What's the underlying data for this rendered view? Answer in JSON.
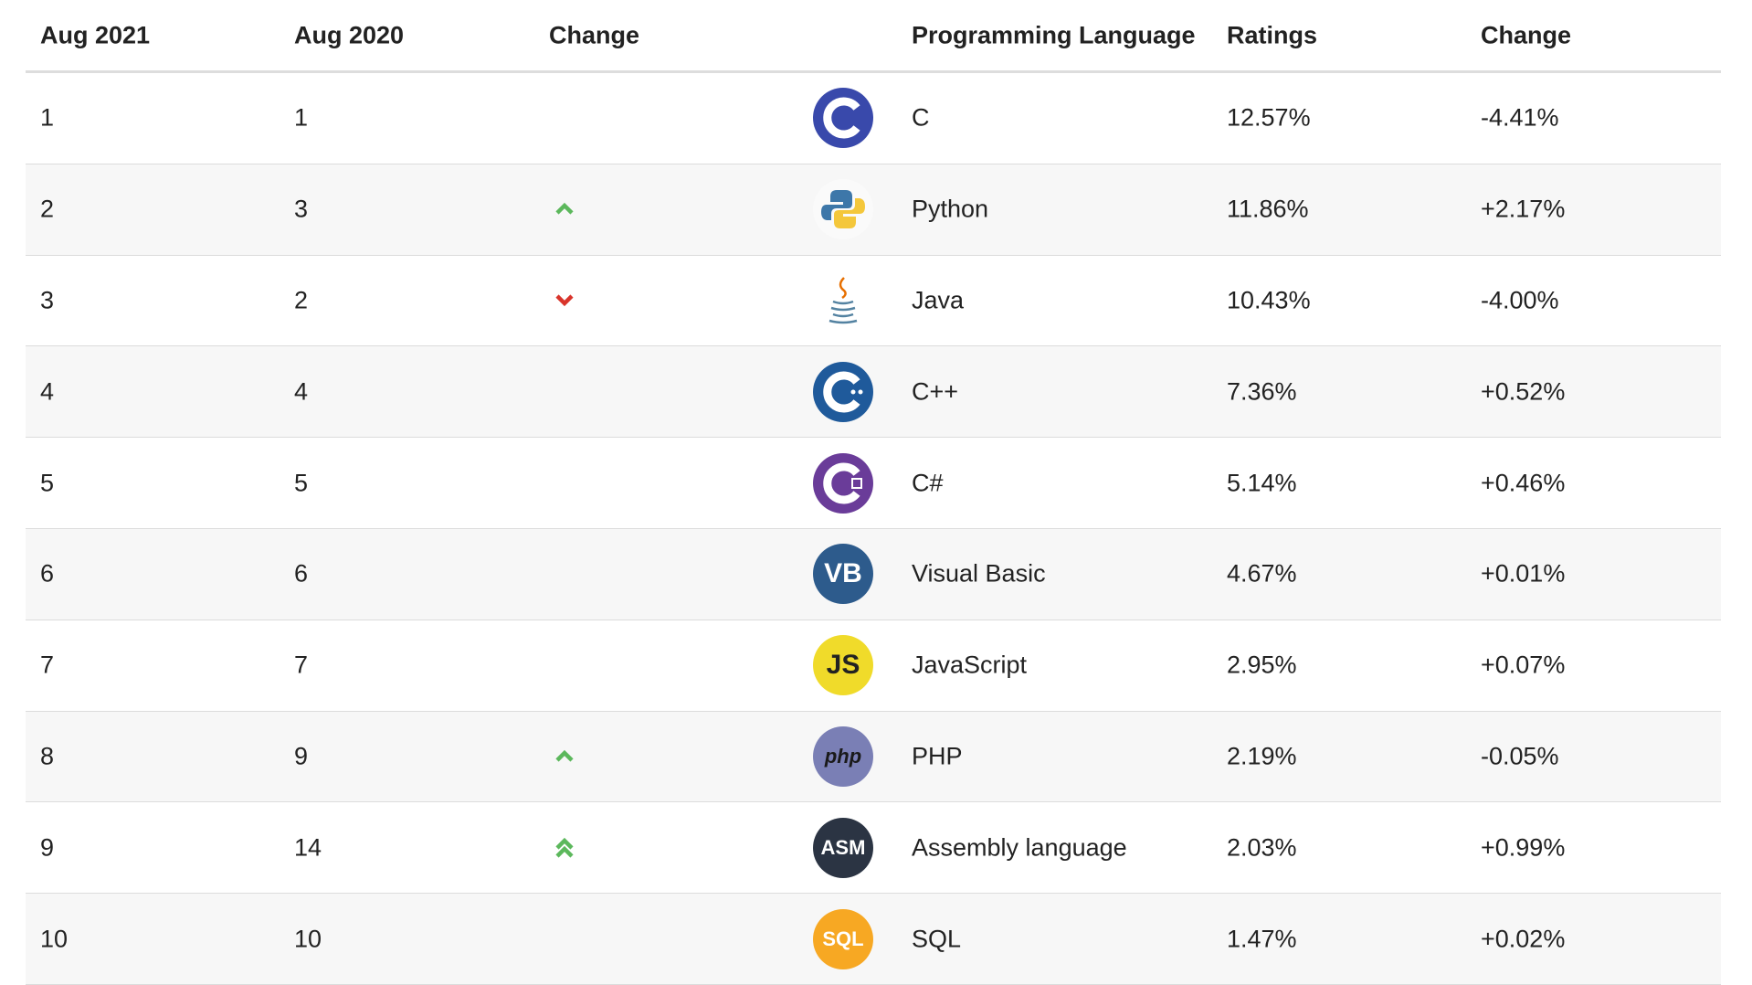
{
  "header": [
    "Aug 2021",
    "Aug 2020",
    "Change",
    "Programming Language",
    "Ratings",
    "Change"
  ],
  "rows": [
    {
      "aug2021": "1",
      "aug2020": "1",
      "language": "C",
      "ratings": "12.57%",
      "change": "-4.41%",
      "logo_style": "c",
      "logo_color": "#3949ab"
    },
    {
      "aug2021": "2",
      "aug2020": "3",
      "trend": "up",
      "language": "Python",
      "ratings": "11.86%",
      "change": "+2.17%",
      "logo_style": "python",
      "logo_color": "#3d77a9"
    },
    {
      "aug2021": "3",
      "aug2020": "2",
      "trend": "down",
      "language": "Java",
      "ratings": "10.43%",
      "change": "-4.00%",
      "logo_style": "java",
      "logo_color": "#e76f00"
    },
    {
      "aug2021": "4",
      "aug2020": "4",
      "language": "C++",
      "ratings": "7.36%",
      "change": "+0.52%",
      "logo_style": "cpp",
      "logo_color": "#1f5a9b"
    },
    {
      "aug2021": "5",
      "aug2020": "5",
      "language": "C#",
      "ratings": "5.14%",
      "change": "+0.46%",
      "logo_style": "csharp",
      "logo_color": "#6a3c99"
    },
    {
      "aug2021": "6",
      "aug2020": "6",
      "language": "Visual Basic",
      "ratings": "4.67%",
      "change": "+0.01%",
      "logo_style": "text",
      "logo_text": "VB",
      "logo_color": "#2d5b8c",
      "logo_text_color": "#ffffff"
    },
    {
      "aug2021": "7",
      "aug2020": "7",
      "language": "JavaScript",
      "ratings": "2.95%",
      "change": "+0.07%",
      "logo_style": "text",
      "logo_text": "JS",
      "logo_color": "#f0db2a",
      "logo_text_color": "#222222"
    },
    {
      "aug2021": "8",
      "aug2020": "9",
      "trend": "up",
      "language": "PHP",
      "ratings": "2.19%",
      "change": "-0.05%",
      "logo_style": "text",
      "logo_text": "php",
      "logo_color": "#7a7fb5",
      "logo_text_color": "#1a1a1a"
    },
    {
      "aug2021": "9",
      "aug2020": "14",
      "trend": "up2",
      "language": "Assembly language",
      "ratings": "2.03%",
      "change": "+0.99%",
      "logo_style": "text",
      "logo_text": "ASM",
      "logo_color": "#2b3443",
      "logo_text_color": "#ffffff"
    },
    {
      "aug2021": "10",
      "aug2020": "10",
      "language": "SQL",
      "ratings": "1.47%",
      "change": "+0.02%",
      "logo_style": "text",
      "logo_text": "SQL",
      "logo_color": "#f7a823",
      "logo_text_color": "#ffffff"
    }
  ]
}
